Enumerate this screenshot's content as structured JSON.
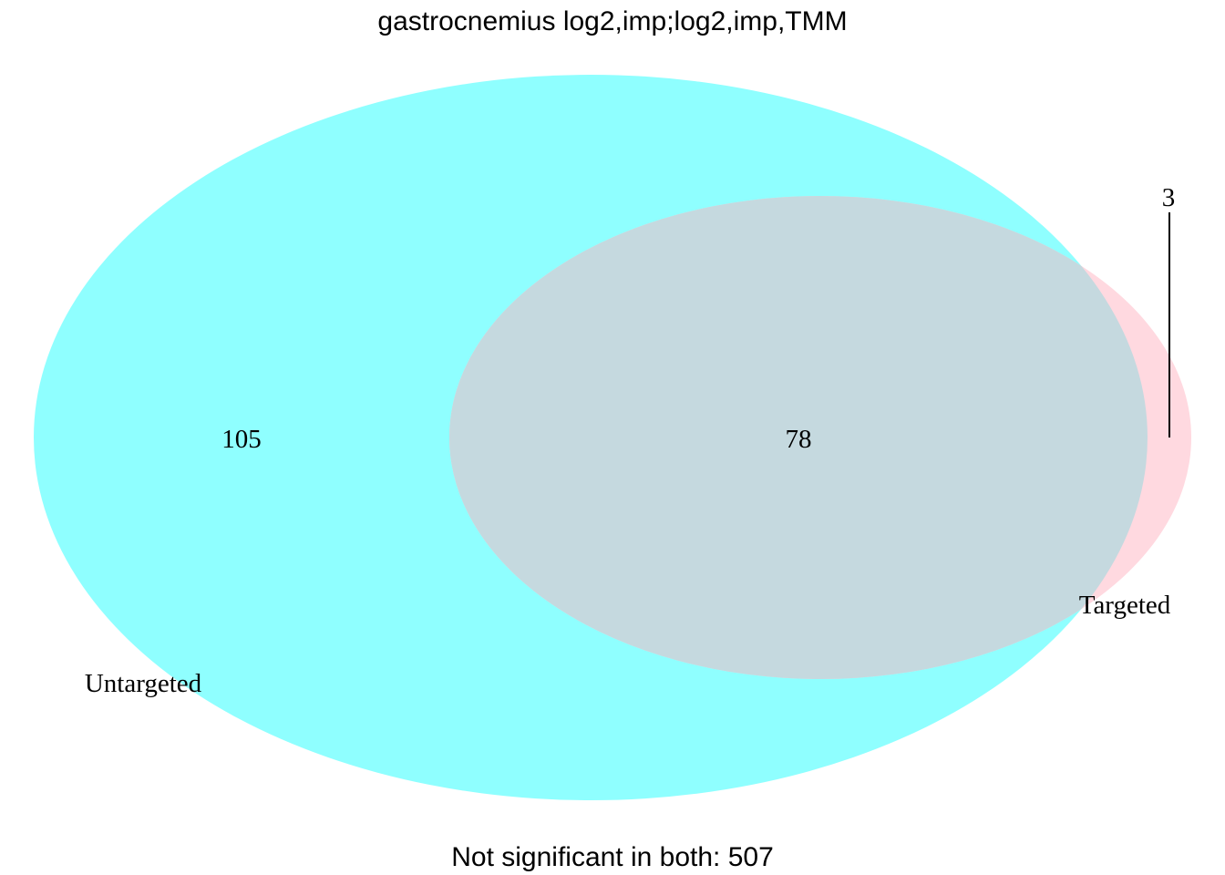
{
  "title": "gastrocnemius log2,imp;log2,imp,TMM",
  "footer": "Not significant in both: 507",
  "colors": {
    "untargeted": "#8fffff",
    "targeted": "#ffd9e0",
    "overlap": "#c5d9df",
    "callout": "#000000"
  },
  "sets": [
    {
      "name": "Untargeted",
      "only_count": "105"
    },
    {
      "name": "Targeted",
      "only_count": "3"
    }
  ],
  "overlap_count": "78"
}
